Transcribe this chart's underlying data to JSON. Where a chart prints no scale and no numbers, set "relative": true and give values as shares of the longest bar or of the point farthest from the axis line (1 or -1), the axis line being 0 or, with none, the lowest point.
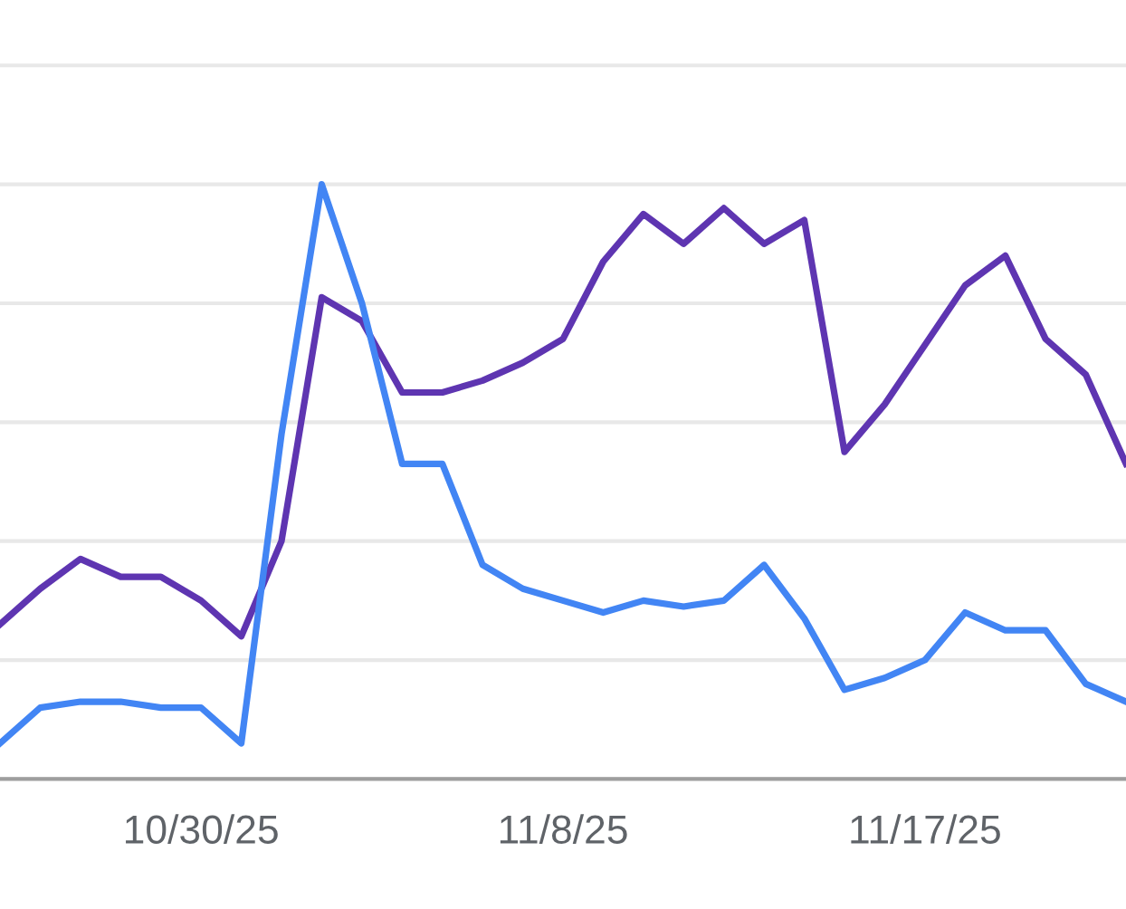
{
  "chart_data": {
    "type": "line",
    "relative": true,
    "tick_labels": "x",
    "grid": "y",
    "marker": "none",
    "line_style": "solid",
    "x": [
      "2025-10-25",
      "2025-10-26",
      "2025-10-27",
      "2025-10-28",
      "2025-10-29",
      "2025-10-30",
      "2025-10-31",
      "2025-11-01",
      "2025-11-02",
      "2025-11-03",
      "2025-11-04",
      "2025-11-05",
      "2025-11-06",
      "2025-11-07",
      "2025-11-08",
      "2025-11-09",
      "2025-11-10",
      "2025-11-11",
      "2025-11-12",
      "2025-11-13",
      "2025-11-14",
      "2025-11-15",
      "2025-11-16",
      "2025-11-17",
      "2025-11-18",
      "2025-11-19",
      "2025-11-20",
      "2025-11-21",
      "2025-11-22"
    ],
    "xlim": [
      "2025-10-25",
      "2025-11-22"
    ],
    "xticks": [
      {
        "value": "2025-10-30",
        "label": "10/30/25"
      },
      {
        "value": "2025-11-08",
        "label": "11/8/25"
      },
      {
        "value": "2025-11-17",
        "label": "11/17/25"
      }
    ],
    "series": [
      {
        "color": "#5e35b1",
        "values": [
          0.26,
          0.32,
          0.37,
          0.34,
          0.34,
          0.3,
          0.24,
          0.4,
          0.81,
          0.77,
          0.65,
          0.65,
          0.67,
          0.7,
          0.74,
          0.87,
          0.95,
          0.9,
          0.96,
          0.9,
          0.94,
          0.55,
          0.63,
          0.73,
          0.83,
          0.88,
          0.74,
          0.68,
          0.53
        ]
      },
      {
        "color": "#4285f4",
        "values": [
          0.06,
          0.12,
          0.13,
          0.13,
          0.12,
          0.12,
          0.06,
          0.58,
          1.0,
          0.8,
          0.53,
          0.53,
          0.36,
          0.32,
          0.3,
          0.28,
          0.3,
          0.29,
          0.3,
          0.36,
          0.27,
          0.15,
          0.17,
          0.2,
          0.28,
          0.25,
          0.25,
          0.16,
          0.13
        ]
      }
    ]
  }
}
